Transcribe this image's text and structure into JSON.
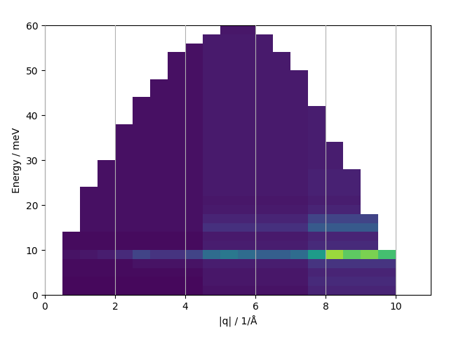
{
  "chart_data": {
    "type": "heatmap",
    "x_label": "|q| / 1/Å",
    "y_label": "Energy / meV",
    "xlim": [
      0,
      11
    ],
    "ylim": [
      0,
      60
    ],
    "xticks": [
      0,
      2,
      4,
      6,
      8,
      10
    ],
    "yticks": [
      0,
      10,
      20,
      30,
      40,
      50,
      60
    ],
    "grid": "x",
    "color": "viridis",
    "color_range": [
      0,
      1
    ],
    "x_edges": [
      0,
      0.5,
      1,
      1.5,
      2,
      2.5,
      3,
      3.5,
      4,
      4.5,
      5,
      5.5,
      6,
      6.5,
      7,
      7.5,
      8,
      8.5,
      9,
      9.5,
      10,
      10.5,
      11
    ],
    "y_edges": [
      0,
      2,
      4,
      6,
      8,
      10,
      12,
      14,
      16,
      18,
      20,
      22,
      24,
      26,
      28,
      30,
      32,
      34,
      36,
      38,
      40,
      42,
      44,
      46,
      48,
      50,
      52,
      54,
      56,
      58,
      60
    ],
    "cells": [
      [
        null,
        0.02,
        0.02,
        0.02,
        0.02,
        0.02,
        0.02,
        0.02,
        0.02,
        0.05,
        0.05,
        0.05,
        0.05,
        0.05,
        0.05,
        0.1,
        0.1,
        0.1,
        0.1,
        0.1,
        null,
        null
      ],
      [
        null,
        0.02,
        0.02,
        0.02,
        0.02,
        0.02,
        0.02,
        0.02,
        0.02,
        0.06,
        0.06,
        0.06,
        0.06,
        0.06,
        0.06,
        0.12,
        0.12,
        0.12,
        0.12,
        0.12,
        null,
        null
      ],
      [
        null,
        0.03,
        0.03,
        0.03,
        0.03,
        0.03,
        0.03,
        0.03,
        0.03,
        0.06,
        0.06,
        0.06,
        0.06,
        0.06,
        0.06,
        0.1,
        0.1,
        0.1,
        0.1,
        0.1,
        null,
        null
      ],
      [
        null,
        0.03,
        0.03,
        0.03,
        0.03,
        0.05,
        0.05,
        0.05,
        0.05,
        0.08,
        0.08,
        0.08,
        0.08,
        0.08,
        0.08,
        0.15,
        0.15,
        0.15,
        0.15,
        0.15,
        null,
        null
      ],
      [
        null,
        0.05,
        0.06,
        0.08,
        0.12,
        0.2,
        0.15,
        0.15,
        0.2,
        0.35,
        0.4,
        0.35,
        0.3,
        0.3,
        0.35,
        0.55,
        0.85,
        0.75,
        0.8,
        0.7,
        null,
        null
      ],
      [
        null,
        0.03,
        0.03,
        0.03,
        0.03,
        0.03,
        0.03,
        0.03,
        0.03,
        0.08,
        0.08,
        0.08,
        0.08,
        0.08,
        0.08,
        0.12,
        0.12,
        0.12,
        0.12,
        null,
        null,
        null
      ],
      [
        null,
        0.03,
        0.03,
        0.03,
        0.03,
        0.03,
        0.03,
        0.03,
        0.03,
        0.07,
        0.07,
        0.07,
        0.07,
        0.07,
        0.07,
        0.1,
        0.1,
        0.1,
        0.1,
        null,
        null,
        null
      ],
      [
        null,
        null,
        0.04,
        0.04,
        0.04,
        0.04,
        0.04,
        0.04,
        0.04,
        0.14,
        0.14,
        0.14,
        0.14,
        0.14,
        0.14,
        0.28,
        0.28,
        0.28,
        0.28,
        null,
        null,
        null
      ],
      [
        null,
        null,
        0.04,
        0.04,
        0.04,
        0.04,
        0.04,
        0.04,
        0.04,
        0.1,
        0.1,
        0.1,
        0.1,
        0.1,
        0.1,
        0.2,
        0.2,
        0.2,
        0.2,
        null,
        null,
        null
      ],
      [
        null,
        null,
        0.04,
        0.04,
        0.04,
        0.04,
        0.04,
        0.04,
        0.04,
        0.07,
        0.07,
        0.07,
        0.07,
        0.07,
        0.07,
        0.1,
        0.1,
        0.1,
        null,
        null,
        null,
        null
      ],
      [
        null,
        null,
        0.04,
        0.04,
        0.04,
        0.04,
        0.04,
        0.04,
        0.04,
        0.06,
        0.06,
        0.06,
        0.06,
        0.06,
        0.06,
        0.08,
        0.08,
        0.08,
        null,
        null,
        null,
        null
      ],
      [
        null,
        null,
        0.04,
        0.04,
        0.04,
        0.04,
        0.04,
        0.04,
        0.04,
        0.07,
        0.07,
        0.07,
        0.07,
        0.07,
        0.07,
        0.09,
        0.09,
        0.09,
        null,
        null,
        null,
        null
      ],
      [
        null,
        null,
        null,
        0.04,
        0.04,
        0.04,
        0.04,
        0.04,
        0.04,
        0.07,
        0.07,
        0.07,
        0.07,
        0.07,
        0.07,
        0.09,
        0.09,
        0.09,
        null,
        null,
        null,
        null
      ],
      [
        null,
        null,
        null,
        0.04,
        0.04,
        0.04,
        0.04,
        0.04,
        0.04,
        0.07,
        0.07,
        0.07,
        0.07,
        0.07,
        0.07,
        0.09,
        0.09,
        0.09,
        null,
        null,
        null,
        null
      ],
      [
        null,
        null,
        null,
        0.04,
        0.04,
        0.04,
        0.04,
        0.04,
        0.04,
        0.07,
        0.07,
        0.07,
        0.07,
        0.07,
        0.07,
        0.08,
        0.08,
        null,
        null,
        null,
        null,
        null
      ],
      [
        null,
        null,
        null,
        null,
        0.04,
        0.04,
        0.04,
        0.04,
        0.04,
        0.07,
        0.07,
        0.07,
        0.07,
        0.07,
        0.07,
        0.08,
        0.08,
        null,
        null,
        null,
        null,
        null
      ],
      [
        null,
        null,
        null,
        null,
        0.04,
        0.04,
        0.04,
        0.04,
        0.04,
        0.07,
        0.07,
        0.07,
        0.07,
        0.07,
        0.07,
        0.08,
        0.08,
        null,
        null,
        null,
        null,
        null
      ],
      [
        null,
        null,
        null,
        null,
        0.04,
        0.04,
        0.04,
        0.04,
        0.04,
        0.07,
        0.07,
        0.07,
        0.07,
        0.07,
        0.07,
        0.08,
        null,
        null,
        null,
        null,
        null,
        null
      ],
      [
        null,
        null,
        null,
        null,
        0.04,
        0.04,
        0.04,
        0.04,
        0.04,
        0.07,
        0.07,
        0.07,
        0.07,
        0.07,
        0.07,
        0.08,
        null,
        null,
        null,
        null,
        null,
        null
      ],
      [
        null,
        null,
        null,
        null,
        null,
        0.04,
        0.04,
        0.04,
        0.04,
        0.07,
        0.07,
        0.07,
        0.07,
        0.07,
        0.07,
        0.08,
        null,
        null,
        null,
        null,
        null,
        null
      ],
      [
        null,
        null,
        null,
        null,
        null,
        0.04,
        0.04,
        0.04,
        0.04,
        0.07,
        0.07,
        0.07,
        0.07,
        0.07,
        0.07,
        0.08,
        null,
        null,
        null,
        null,
        null,
        null
      ],
      [
        null,
        null,
        null,
        null,
        null,
        0.04,
        0.04,
        0.04,
        0.04,
        0.07,
        0.07,
        0.07,
        0.07,
        0.07,
        0.07,
        null,
        null,
        null,
        null,
        null,
        null,
        null
      ],
      [
        null,
        null,
        null,
        null,
        null,
        null,
        0.04,
        0.04,
        0.04,
        0.07,
        0.07,
        0.07,
        0.07,
        0.07,
        0.07,
        null,
        null,
        null,
        null,
        null,
        null,
        null
      ],
      [
        null,
        null,
        null,
        null,
        null,
        null,
        0.04,
        0.04,
        0.04,
        0.07,
        0.07,
        0.07,
        0.07,
        0.07,
        0.07,
        null,
        null,
        null,
        null,
        null,
        null,
        null
      ],
      [
        null,
        null,
        null,
        null,
        null,
        null,
        null,
        0.04,
        0.04,
        0.07,
        0.07,
        0.07,
        0.07,
        0.07,
        0.07,
        null,
        null,
        null,
        null,
        null,
        null,
        null
      ],
      [
        null,
        null,
        null,
        null,
        null,
        null,
        null,
        0.04,
        0.04,
        0.07,
        0.07,
        0.07,
        0.07,
        0.07,
        null,
        null,
        null,
        null,
        null,
        null,
        null,
        null
      ],
      [
        null,
        null,
        null,
        null,
        null,
        null,
        null,
        0.04,
        0.04,
        0.07,
        0.07,
        0.07,
        0.07,
        0.07,
        null,
        null,
        null,
        null,
        null,
        null,
        null,
        null
      ],
      [
        null,
        null,
        null,
        null,
        null,
        null,
        null,
        null,
        0.04,
        0.07,
        0.07,
        0.07,
        0.07,
        null,
        null,
        null,
        null,
        null,
        null,
        null,
        null,
        null
      ],
      [
        null,
        null,
        null,
        null,
        null,
        null,
        null,
        null,
        null,
        0.07,
        0.07,
        0.07,
        0.07,
        null,
        null,
        null,
        null,
        null,
        null,
        null,
        null,
        null
      ],
      [
        null,
        null,
        null,
        null,
        null,
        null,
        null,
        null,
        null,
        null,
        0.06,
        0.06,
        null,
        null,
        null,
        null,
        null,
        null,
        null,
        null,
        null,
        null
      ]
    ]
  }
}
